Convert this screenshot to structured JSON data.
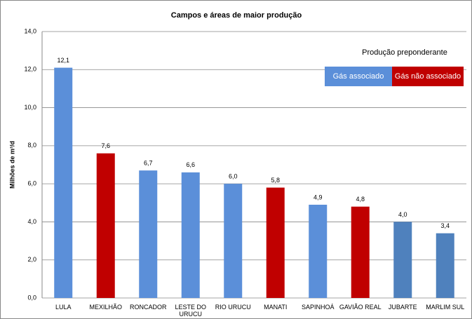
{
  "chart_data": {
    "type": "bar",
    "title": "Campos e áreas de maior produção",
    "y_label": "Milhões de m³/d",
    "categories": [
      "LULA",
      "MEXILHÃO",
      "RONCADOR",
      "LESTE DO URUCU",
      "RIO URUCU",
      "MANATI",
      "SAPINHOÁ",
      "GAVIÃO REAL",
      "JUBARTE",
      "MARLIM SUL"
    ],
    "values": [
      12.1,
      7.6,
      6.7,
      6.6,
      6.0,
      5.8,
      4.9,
      4.8,
      4.0,
      3.4
    ],
    "value_labels": [
      "12,1",
      "7,6",
      "6,7",
      "6,6",
      "6,0",
      "5,8",
      "4,9",
      "4,8",
      "4,0",
      "3,4"
    ],
    "colors": [
      "#5b8fd9",
      "#c00000",
      "#5b8fd9",
      "#5b8fd9",
      "#5b8fd9",
      "#c00000",
      "#5b8fd9",
      "#c00000",
      "#4f81bd",
      "#4f81bd"
    ],
    "ylim": [
      0,
      14
    ],
    "yticks": [
      {
        "value": 0,
        "label": "0,0"
      },
      {
        "value": 2,
        "label": "2,0"
      },
      {
        "value": 4,
        "label": "4,0"
      },
      {
        "value": 6,
        "label": "6,0"
      },
      {
        "value": 8,
        "label": "8,0"
      },
      {
        "value": 10,
        "label": "10,0"
      },
      {
        "value": 12,
        "label": "12,0"
      },
      {
        "value": 14,
        "label": "14,0"
      }
    ],
    "grid": true,
    "legend": {
      "title": "Produção preponderante",
      "items": [
        {
          "name": "Gás associado",
          "color": "#5b8fd9"
        },
        {
          "name": "Gás não associado",
          "color": "#c00000"
        }
      ]
    }
  }
}
